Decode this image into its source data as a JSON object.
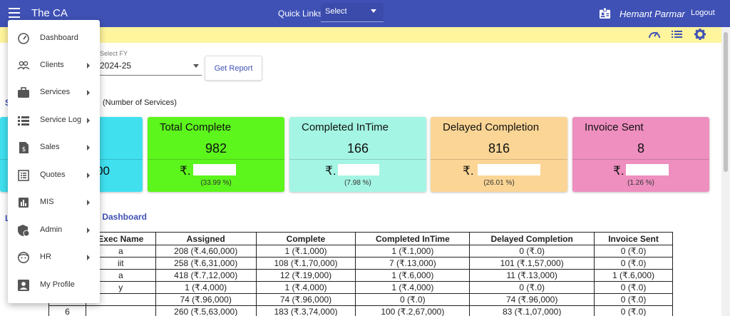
{
  "header": {
    "app_title": "The CA",
    "quick_links_label": "Quick Links:",
    "quick_links_value": "Select",
    "user_name": "Hemant Parmar",
    "logout_label": "Logout"
  },
  "toolbar_icons": [
    "speedometer-icon",
    "list-icon",
    "gear-icon"
  ],
  "filters": {
    "fy_label": "Select FY",
    "fy_value": "2024-25",
    "get_report_label": "Get Report"
  },
  "section": {
    "subtitle": "(Number of Services)",
    "dashboard_title": "log Dashboard",
    "cut_heading_1": "S",
    "cut_heading_2": "L"
  },
  "cards": [
    {
      "title": "",
      "count": "",
      "amount": "00",
      "pct": "",
      "color": "#40e0ef"
    },
    {
      "title": "Total Complete",
      "count": "982",
      "amount": "₹.",
      "pct": "(33.99 %)",
      "color": "#5cf51c"
    },
    {
      "title": "Completed InTime",
      "count": "166",
      "amount": "₹.",
      "pct": "(7.98 %)",
      "color": "#a4f5e3"
    },
    {
      "title": "Delayed Completion",
      "count": "816",
      "amount": "₹.",
      "pct": "(26.01 %)",
      "color": "#fad595"
    },
    {
      "title": "Invoice Sent",
      "count": "8",
      "amount": "₹.",
      "pct": "(1.26 %)",
      "color": "#ee8fbf"
    }
  ],
  "table": {
    "columns": [
      "",
      "Exec Name",
      "Assigned",
      "Complete",
      "Completed InTime",
      "Delayed Completion",
      "Invoice Sent"
    ],
    "rows": [
      [
        "",
        "a",
        "208 (₹.4,60,000)",
        "1 (₹.1,000)",
        "1 (₹.1,000)",
        "0 (₹.0)",
        "0 (₹.0)"
      ],
      [
        "",
        "iit",
        "258 (₹.6,31,000)",
        "108 (₹.1,70,000)",
        "7 (₹.13,000)",
        "101 (₹.1,57,000)",
        "0 (₹.0)"
      ],
      [
        "",
        "a",
        "418 (₹.7,12,000)",
        "12 (₹.19,000)",
        "1 (₹.6,000)",
        "11 (₹.13,000)",
        "1 (₹.6,000)"
      ],
      [
        "",
        "y",
        "1 (₹.4,000)",
        "1 (₹.4,000)",
        "1 (₹.4,000)",
        "0 (₹.0)",
        "0 (₹.0)"
      ],
      [
        "",
        "",
        "74 (₹.96,000)",
        "74 (₹.96,000)",
        "0 (₹.0)",
        "74 (₹.96,000)",
        "0 (₹.0)"
      ],
      [
        "6",
        "",
        "260 (₹.5,63,000)",
        "183 (₹.3,74,000)",
        "100 (₹.2,67,000)",
        "83 (₹.1,07,000)",
        "0 (₹.0)"
      ]
    ]
  },
  "menu": [
    {
      "label": "Dashboard",
      "icon": "speedometer-icon",
      "submenu": false
    },
    {
      "label": "Clients",
      "icon": "people-icon",
      "submenu": true
    },
    {
      "label": "Services",
      "icon": "briefcase-icon",
      "submenu": true
    },
    {
      "label": "Service Log",
      "icon": "list-icon",
      "submenu": true
    },
    {
      "label": "Sales",
      "icon": "invoice-icon",
      "submenu": true
    },
    {
      "label": "Quotes",
      "icon": "document-list-icon",
      "submenu": true
    },
    {
      "label": "MIS",
      "icon": "bar-chart-icon",
      "submenu": true
    },
    {
      "label": "Admin",
      "icon": "admin-shield-icon",
      "submenu": true
    },
    {
      "label": "HR",
      "icon": "face-icon",
      "submenu": true
    },
    {
      "label": "My Profile",
      "icon": "profile-icon",
      "submenu": false
    }
  ],
  "colors": {
    "header_bg": "#3f51b5",
    "yellow_bar": "#fff59d",
    "accent": "#3f51b5"
  }
}
